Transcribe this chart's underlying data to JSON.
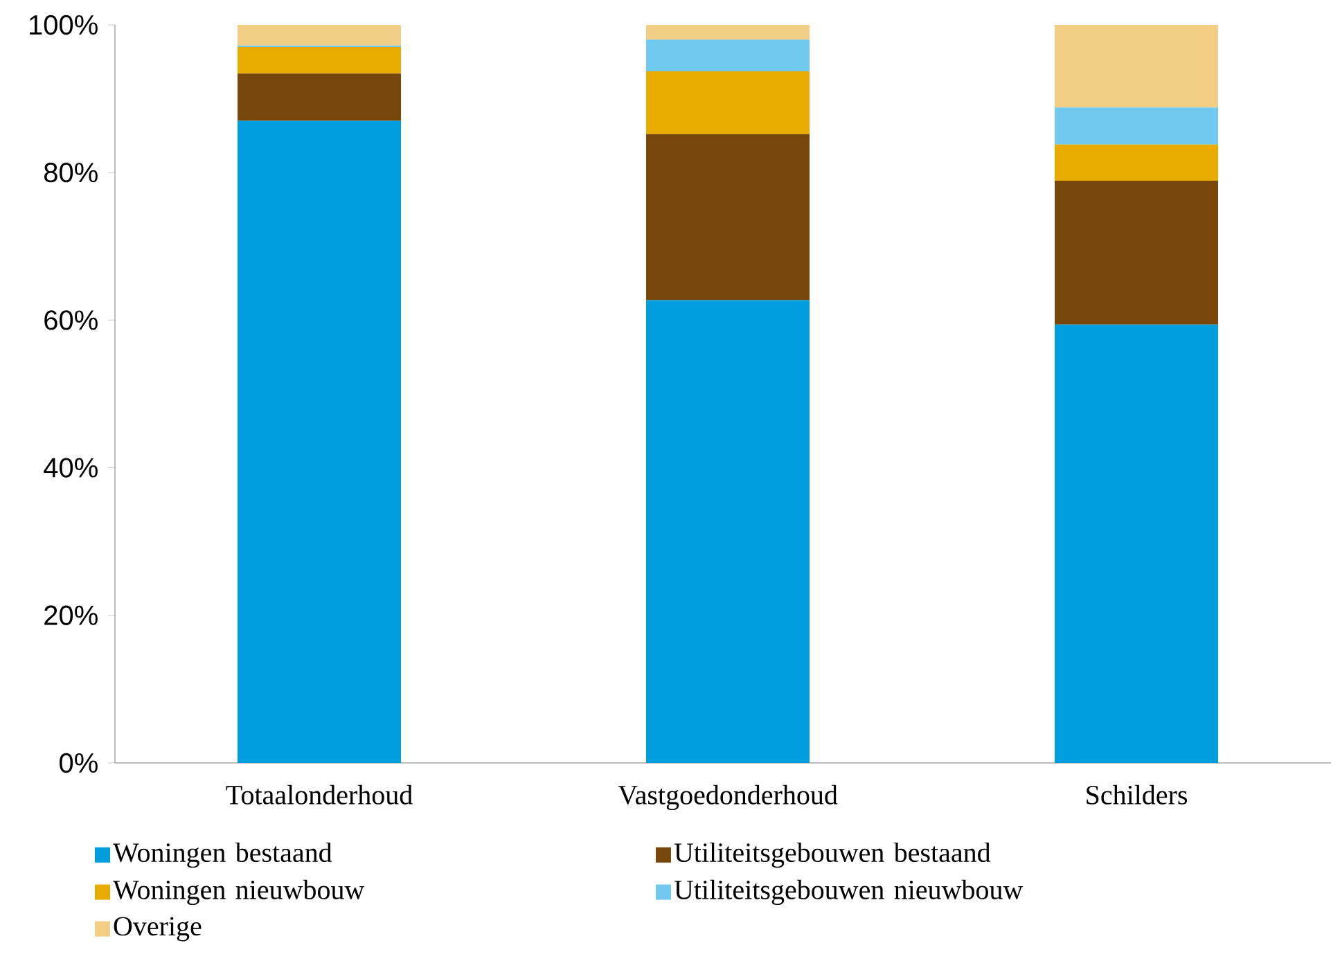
{
  "chart_data": {
    "type": "bar",
    "stacked": true,
    "categories": [
      "Totaalonderhoud",
      "Vastgoedonderhoud",
      "Schilders"
    ],
    "series": [
      {
        "name": "Woningen bestaand",
        "color": "#009ddf",
        "values": [
          87.0,
          62.7,
          59.4
        ]
      },
      {
        "name": "Utiliteitsgebouwen bestaand",
        "color": "#77460a",
        "values": [
          6.4,
          22.5,
          19.5
        ]
      },
      {
        "name": "Woningen nieuwbouw",
        "color": "#e8ab00",
        "values": [
          3.6,
          8.5,
          4.9
        ]
      },
      {
        "name": "Utiliteitsgebouwen nieuwbouw",
        "color": "#72c9ef",
        "values": [
          0.2,
          4.3,
          5.0
        ]
      },
      {
        "name": "Overige",
        "color": "#f3ce85",
        "values": [
          2.8,
          2.0,
          11.2
        ]
      }
    ],
    "ylim": [
      0,
      100
    ],
    "yticks": [
      {
        "value": 0,
        "label": "0%"
      },
      {
        "value": 20,
        "label": "20%"
      },
      {
        "value": 40,
        "label": "40%"
      },
      {
        "value": 60,
        "label": "60%"
      },
      {
        "value": 80,
        "label": "80%"
      },
      {
        "value": 100,
        "label": "100%"
      }
    ],
    "grid": false,
    "legend": "bottom"
  }
}
